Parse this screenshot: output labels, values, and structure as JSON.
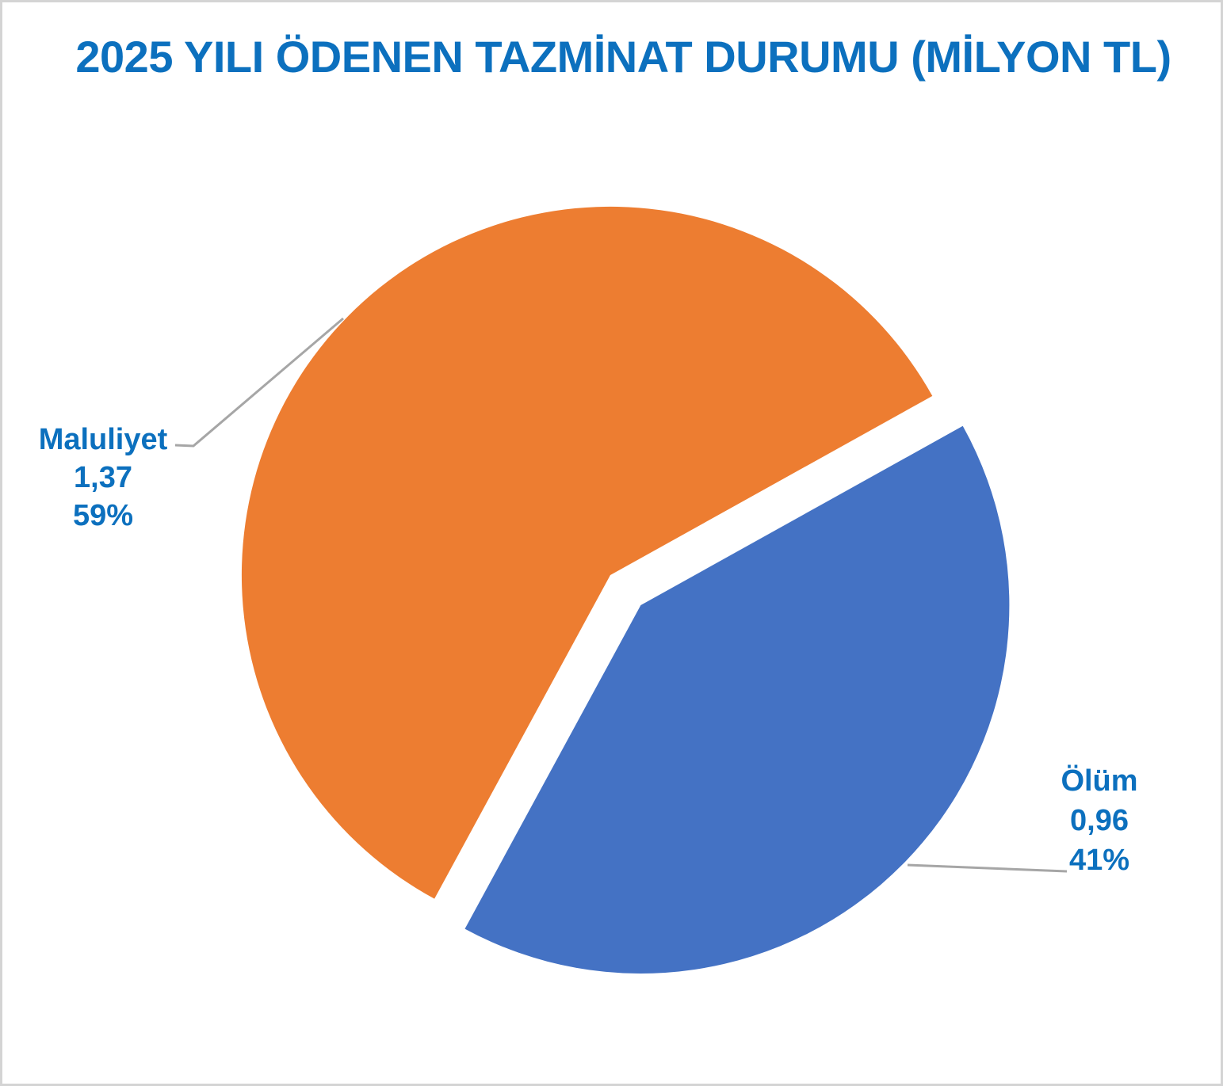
{
  "title": "2025 YILI ÖDENEN TAZMİNAT DURUMU (MİLYON TL)",
  "colors": {
    "title_text": "#0c70be",
    "label_text": "#0c70be",
    "leader_line": "#a6a6a6",
    "slice_maluliyet": "#ed7d31",
    "slice_olum": "#4472c4"
  },
  "chart_data": {
    "type": "pie",
    "title": "2025 YILI ÖDENEN TAZMİNAT DURUMU (MİLYON TL)",
    "unit": "MİLYON TL",
    "legend": "none",
    "data_label_parts": [
      "category",
      "value",
      "percentage"
    ],
    "slices": [
      {
        "label": "Maluliyet",
        "value": 1.37,
        "value_text": "1,37",
        "pct": 59,
        "pct_text": "59%",
        "color": "#ed7d31",
        "exploded": false
      },
      {
        "label": "Ölüm",
        "value": 0.96,
        "value_text": "0,96",
        "pct": 41,
        "pct_text": "41%",
        "color": "#4472c4",
        "exploded": true
      }
    ]
  }
}
